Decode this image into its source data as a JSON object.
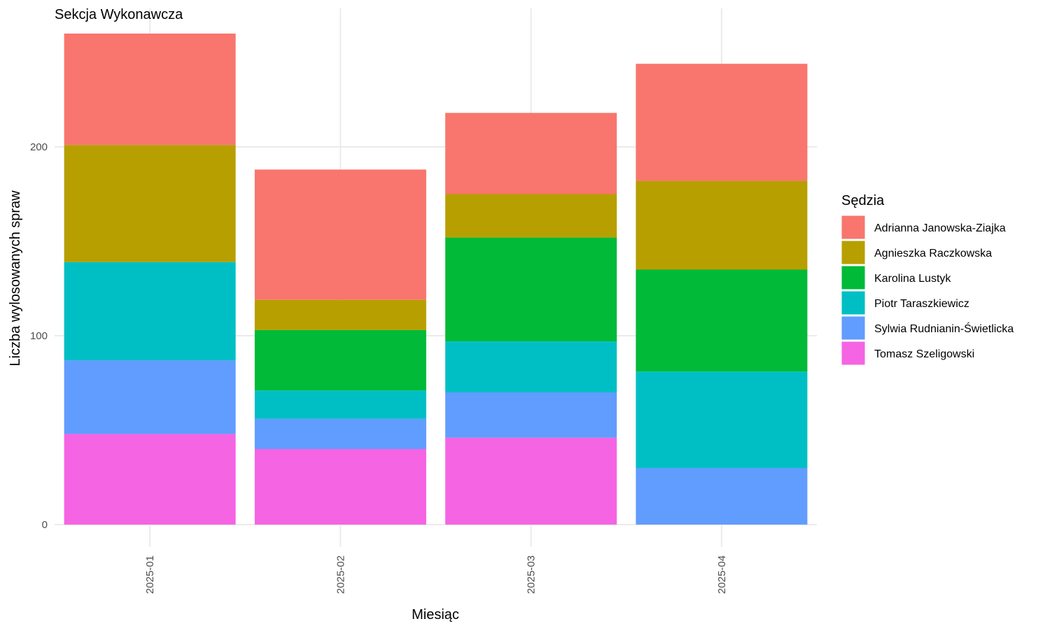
{
  "chart_data": {
    "type": "bar",
    "stacked": true,
    "title": "Sekcja Wykonawcza",
    "xlabel": "Miesiąc",
    "ylabel": "Liczba wylosowanych spraw",
    "categories": [
      "2025-01",
      "2025-02",
      "2025-03",
      "2025-04"
    ],
    "ylim": [
      0,
      265
    ],
    "yticks": [
      0,
      100,
      200
    ],
    "ytick_labels": [
      "0",
      "100",
      "200"
    ],
    "grid": true,
    "legend": {
      "title": "Sędzia",
      "position": "right"
    },
    "series": [
      {
        "name": "Tomasz Szeligowski",
        "color": "#F564E3",
        "values": [
          48,
          40,
          46,
          0
        ]
      },
      {
        "name": "Sylwia Rudnianin-Świetlicka",
        "color": "#619CFF",
        "values": [
          39,
          16,
          24,
          30
        ]
      },
      {
        "name": "Piotr Taraszkiewicz",
        "color": "#00BFC4",
        "values": [
          52,
          15,
          27,
          51
        ]
      },
      {
        "name": "Karolina Lustyk",
        "color": "#00BA38",
        "values": [
          0,
          32,
          55,
          54
        ]
      },
      {
        "name": "Agnieszka Raczkowska",
        "color": "#B79F00",
        "values": [
          62,
          16,
          23,
          47
        ]
      },
      {
        "name": "Adrianna Janowska-Ziajka",
        "color": "#F8766D",
        "values": [
          59,
          69,
          43,
          62
        ]
      }
    ],
    "legend_order": [
      "Adrianna Janowska-Ziajka",
      "Agnieszka Raczkowska",
      "Karolina Lustyk",
      "Piotr Taraszkiewicz",
      "Sylwia Rudnianin-Świetlicka",
      "Tomasz Szeligowski"
    ]
  }
}
